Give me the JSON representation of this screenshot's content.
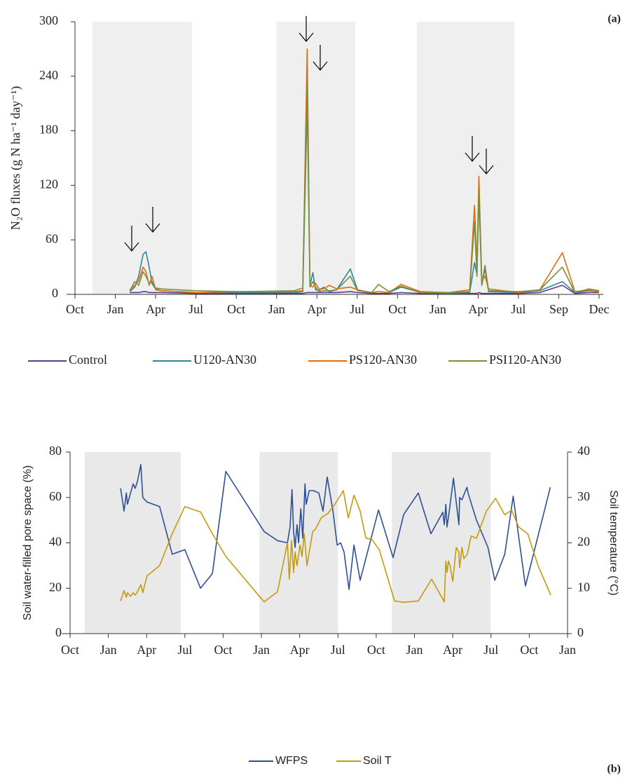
{
  "chart_data": [
    {
      "type": "line",
      "panel_label": "(a)",
      "ylabel": "N₂O fluxes (g N ha⁻¹ day⁻¹)",
      "xlim": [
        0,
        13
      ],
      "ylim": [
        0,
        300
      ],
      "xticks": [
        {
          "value": 0,
          "label": "Oct"
        },
        {
          "value": 1,
          "label": "Jan"
        },
        {
          "value": 2,
          "label": "Apr"
        },
        {
          "value": 3,
          "label": "Jul"
        },
        {
          "value": 4,
          "label": "Oct"
        },
        {
          "value": 5,
          "label": "Jan"
        },
        {
          "value": 6,
          "label": "Apr"
        },
        {
          "value": 7,
          "label": "Jul"
        },
        {
          "value": 8,
          "label": "Oct"
        },
        {
          "value": 9,
          "label": "Jan"
        },
        {
          "value": 10,
          "label": "Apr"
        },
        {
          "value": 11,
          "label": "Jul"
        },
        {
          "value": 12,
          "label": "Sep"
        },
        {
          "value": 13,
          "label": "Dec"
        }
      ],
      "yticks": [
        0,
        60,
        120,
        180,
        240,
        300
      ],
      "shaded_periods": [
        [
          0.43,
          2.9
        ],
        [
          5.0,
          6.95
        ],
        [
          8.48,
          10.9
        ]
      ],
      "shade_color": "#efefef",
      "legend": "bottom",
      "x": [
        1.36,
        1.48,
        1.58,
        1.69,
        1.76,
        1.84,
        1.91,
        2.0,
        2.14,
        3.01,
        4.05,
        5.44,
        5.65,
        5.76,
        5.83,
        5.9,
        5.97,
        6.05,
        6.17,
        6.31,
        6.49,
        6.83,
        7.01,
        7.36,
        7.53,
        7.79,
        8.09,
        8.57,
        9.27,
        9.79,
        9.91,
        9.97,
        10.02,
        10.09,
        10.17,
        10.26,
        11.01,
        11.53,
        12.09,
        12.4,
        12.75,
        13.0
      ],
      "series": [
        {
          "name": "Control",
          "color": "#5b3a8e",
          "values": [
            2,
            2,
            2,
            3,
            3,
            2,
            2,
            2,
            2,
            1,
            1,
            1,
            1,
            2,
            2,
            2,
            2,
            2,
            2,
            2,
            2,
            3,
            2,
            1,
            1,
            1,
            2,
            1,
            1,
            1,
            1,
            1,
            2,
            1,
            1,
            1,
            1,
            2,
            10,
            1,
            2,
            2
          ]
        },
        {
          "name": "U120-AN30",
          "color": "#31859c",
          "values": [
            3,
            8,
            20,
            44,
            47,
            30,
            12,
            6,
            4,
            2,
            2,
            2,
            3,
            210,
            10,
            24,
            5,
            4,
            8,
            3,
            5,
            28,
            5,
            2,
            3,
            2,
            8,
            2,
            1,
            2,
            35,
            22,
            110,
            10,
            28,
            3,
            2,
            4,
            14,
            2,
            4,
            3
          ]
        },
        {
          "name": "PS120-AN30",
          "color": "#e36c09",
          "values": [
            5,
            10,
            15,
            30,
            25,
            10,
            20,
            5,
            4,
            2,
            3,
            3,
            4,
            270,
            10,
            8,
            12,
            6,
            6,
            10,
            6,
            8,
            5,
            2,
            3,
            2,
            11,
            3,
            2,
            5,
            98,
            30,
            130,
            15,
            20,
            6,
            2,
            5,
            46,
            3,
            5,
            2
          ]
        },
        {
          "name": "PSI120-AN30",
          "color": "#76923c",
          "values": [
            4,
            14,
            10,
            25,
            20,
            12,
            14,
            7,
            6,
            4,
            3,
            4,
            7,
            230,
            8,
            14,
            8,
            3,
            4,
            4,
            5,
            20,
            4,
            2,
            11,
            3,
            9,
            2,
            2,
            3,
            80,
            20,
            115,
            10,
            32,
            4,
            3,
            5,
            30,
            2,
            6,
            4
          ]
        }
      ]
    },
    {
      "type": "line",
      "panel_label": "(b)",
      "ylabel": "Soil water-filled pore space (%)",
      "y2label": "Soil temperature (°C)",
      "xlim": [
        0,
        13
      ],
      "ylim": [
        0,
        80
      ],
      "y2lim": [
        0,
        40
      ],
      "xticks": [
        {
          "value": 0,
          "label": "Oct"
        },
        {
          "value": 1,
          "label": "Jan"
        },
        {
          "value": 2,
          "label": "Apr"
        },
        {
          "value": 3,
          "label": "Jul"
        },
        {
          "value": 4,
          "label": "Oct"
        },
        {
          "value": 5,
          "label": "Jan"
        },
        {
          "value": 6,
          "label": "Apr"
        },
        {
          "value": 7,
          "label": "Jul"
        },
        {
          "value": 8,
          "label": "Oct"
        },
        {
          "value": 9,
          "label": "Jan"
        },
        {
          "value": 10,
          "label": "Apr"
        },
        {
          "value": 11,
          "label": "Jul"
        },
        {
          "value": 12,
          "label": "Oct"
        },
        {
          "value": 13,
          "label": "Jan"
        }
      ],
      "yticks": [
        0,
        20,
        40,
        60,
        80
      ],
      "y2ticks": [
        0,
        10,
        20,
        30,
        40
      ],
      "shaded_periods": [
        [
          0.38,
          2.89
        ],
        [
          4.95,
          7.0
        ],
        [
          8.41,
          10.99
        ]
      ],
      "shade_color": "#e9e9e9",
      "legend": "bottom",
      "series": [
        {
          "name": "WFPS",
          "color": "#2e4f96",
          "x": [
            1.32,
            1.41,
            1.47,
            1.5,
            1.58,
            1.65,
            1.7,
            1.76,
            1.85,
            1.9,
            2.01,
            2.34,
            2.67,
            3.0,
            3.41,
            3.72,
            4.07,
            5.07,
            5.42,
            5.68,
            5.75,
            5.8,
            5.84,
            5.88,
            5.93,
            5.97,
            6.03,
            6.08,
            6.14,
            6.17,
            6.25,
            6.36,
            6.5,
            6.61,
            6.72,
            6.87,
            6.98,
            7.07,
            7.16,
            7.29,
            7.42,
            7.58,
            8.06,
            8.44,
            8.72,
            9.1,
            9.43,
            9.74,
            9.78,
            9.82,
            9.85,
            9.91,
            10.02,
            10.09,
            10.16,
            10.18,
            10.24,
            10.37,
            10.4,
            10.62,
            10.92,
            11.1,
            11.36,
            11.58,
            11.9,
            12.55
          ],
          "values": [
            64,
            54,
            62,
            57,
            62,
            66,
            64,
            67,
            74.5,
            60,
            58,
            56,
            35,
            37,
            20,
            26.5,
            71.5,
            45,
            41,
            40,
            47,
            63.5,
            45,
            38,
            48,
            40,
            55,
            42,
            66,
            57,
            63,
            63,
            62,
            54,
            69,
            54,
            39,
            40,
            36,
            19.5,
            39,
            23.5,
            54.5,
            33.5,
            52.5,
            62,
            44,
            53.5,
            48,
            57,
            47,
            54,
            68.5,
            58,
            48,
            60,
            59,
            64.5,
            62,
            50,
            38,
            23.5,
            35,
            60.5,
            21,
            64.5
          ]
        },
        {
          "name": "Soil T",
          "color": "#c39b0f",
          "axis": "y2",
          "x": [
            1.32,
            1.41,
            1.47,
            1.5,
            1.58,
            1.65,
            1.7,
            1.76,
            1.85,
            1.9,
            2.01,
            2.34,
            2.67,
            3.0,
            3.41,
            3.72,
            4.07,
            5.07,
            5.42,
            5.68,
            5.73,
            5.79,
            5.84,
            5.88,
            5.93,
            6.01,
            6.06,
            6.12,
            6.19,
            6.34,
            6.41,
            6.56,
            6.74,
            6.92,
            7.14,
            7.27,
            7.42,
            7.58,
            7.73,
            7.88,
            8.08,
            8.48,
            8.72,
            9.1,
            9.45,
            9.78,
            9.82,
            9.85,
            9.89,
            9.93,
            10.0,
            10.09,
            10.16,
            10.18,
            10.24,
            10.29,
            10.38,
            10.48,
            10.62,
            10.88,
            11.12,
            11.36,
            11.54,
            11.72,
            11.96,
            12.23,
            12.56
          ],
          "values": [
            7.2,
            9.5,
            8,
            9,
            8.2,
            9,
            8.5,
            9.2,
            10.8,
            9,
            12.7,
            15,
            22,
            28,
            26.8,
            22,
            17,
            7,
            9.2,
            20,
            12,
            20.5,
            13.5,
            18,
            15,
            19.5,
            17,
            22,
            15,
            22.5,
            23,
            25.5,
            26.5,
            28.5,
            31.5,
            25.5,
            30.5,
            27,
            21,
            20.8,
            18.5,
            7.2,
            6.9,
            7.2,
            12,
            7,
            16,
            13.5,
            16,
            15,
            11.5,
            19,
            18,
            14.5,
            19,
            16.5,
            17.5,
            21.5,
            21,
            27,
            29.8,
            26.2,
            27.2,
            23.5,
            22,
            15,
            8.5
          ]
        }
      ]
    }
  ]
}
